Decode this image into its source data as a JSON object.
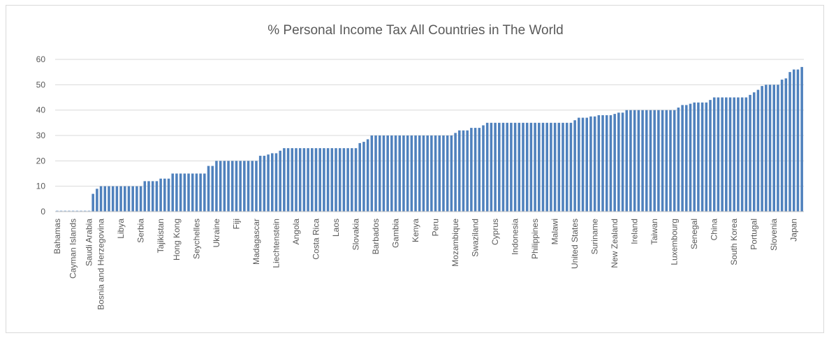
{
  "chart_data": {
    "type": "bar",
    "title": "% Personal Income Tax All Countries in The World",
    "xlabel": "",
    "ylabel": "",
    "ylim": [
      0,
      60
    ],
    "y_ticks": [
      0,
      10,
      20,
      30,
      40,
      50,
      60
    ],
    "grid": true,
    "legend": "none",
    "bar_color": "#4f81bd",
    "categories": [
      "Bahamas",
      "",
      "",
      "",
      "Cayman Islands",
      "",
      "",
      "",
      "Saudi Arabia",
      "",
      "",
      "Bosnia and Herzegovina",
      "",
      "",
      "",
      "",
      "Libya",
      "",
      "",
      "",
      "",
      "Serbia",
      "",
      "",
      "",
      "",
      "Tajikistan",
      "",
      "",
      "",
      "Hong Kong",
      "",
      "",
      "",
      "",
      "Seychelles",
      "",
      "",
      "",
      "",
      "Ukraine",
      "",
      "",
      "",
      "",
      "Fiji",
      "",
      "",
      "",
      "",
      "Madagascar",
      "",
      "",
      "",
      "",
      "Liechtenstein",
      "",
      "",
      "",
      "",
      "Angola",
      "",
      "",
      "",
      "",
      "Costa Rica",
      "",
      "",
      "",
      "",
      "Laos",
      "",
      "",
      "",
      "",
      "Slovakia",
      "",
      "",
      "",
      "",
      "Barbados",
      "",
      "",
      "",
      "",
      "Gambia",
      "",
      "",
      "",
      "",
      "Kenya",
      "",
      "",
      "",
      "",
      "Peru",
      "",
      "",
      "",
      "",
      "Mozambique",
      "",
      "",
      "",
      "",
      "Swaziland",
      "",
      "",
      "",
      "",
      "Cyprus",
      "",
      "",
      "",
      "",
      "Indonesia",
      "",
      "",
      "",
      "",
      "Philippines",
      "",
      "",
      "",
      "",
      "Malawi",
      "",
      "",
      "",
      "",
      "United States",
      "",
      "",
      "",
      "",
      "Suriname",
      "",
      "",
      "",
      "",
      "New Zealand",
      "",
      "",
      "",
      "",
      "Ireland",
      "",
      "",
      "",
      "",
      "Taiwan",
      "",
      "",
      "",
      "",
      "Luxembourg",
      "",
      "",
      "",
      "",
      "Senegal",
      "",
      "",
      "",
      "",
      "China",
      "",
      "",
      "",
      "",
      "South Korea",
      "",
      "",
      "",
      "",
      "Portugal",
      "",
      "",
      "",
      "",
      "Slovenia",
      "",
      "",
      "",
      "",
      "Japan",
      "",
      ""
    ],
    "values": [
      0,
      0,
      0,
      0,
      0,
      0,
      0,
      0,
      0,
      7,
      9,
      10,
      10,
      10,
      10,
      10,
      10,
      10,
      10,
      10,
      10,
      10,
      12,
      12,
      12,
      12,
      13,
      13,
      13,
      15,
      15,
      15,
      15,
      15,
      15,
      15,
      15,
      15,
      18,
      18,
      20,
      20,
      20,
      20,
      20,
      20,
      20,
      20,
      20,
      20,
      20,
      22,
      22,
      22.5,
      23,
      23,
      24,
      25,
      25,
      25,
      25,
      25,
      25,
      25,
      25,
      25,
      25,
      25,
      25,
      25,
      25,
      25,
      25,
      25,
      25,
      25,
      27,
      27.5,
      28.5,
      30,
      30,
      30,
      30,
      30,
      30,
      30,
      30,
      30,
      30,
      30,
      30,
      30,
      30,
      30,
      30,
      30,
      30,
      30,
      30,
      30,
      31,
      32,
      32,
      32,
      33,
      33,
      33,
      34,
      35,
      35,
      35,
      35,
      35,
      35,
      35,
      35,
      35,
      35,
      35,
      35,
      35,
      35,
      35,
      35,
      35,
      35,
      35,
      35,
      35,
      35,
      36,
      37,
      37,
      37,
      37.5,
      37.5,
      38,
      38,
      38,
      38,
      38.5,
      39,
      39,
      40,
      40,
      40,
      40,
      40,
      40,
      40,
      40,
      40,
      40,
      40,
      40,
      40,
      41,
      42,
      42,
      42.5,
      43,
      43,
      43,
      43,
      44,
      45,
      45,
      45,
      45,
      45,
      45,
      45,
      45,
      45,
      46,
      47,
      48,
      49.5,
      50,
      50,
      50,
      50,
      52,
      52.5,
      55,
      56,
      56,
      57
    ]
  }
}
